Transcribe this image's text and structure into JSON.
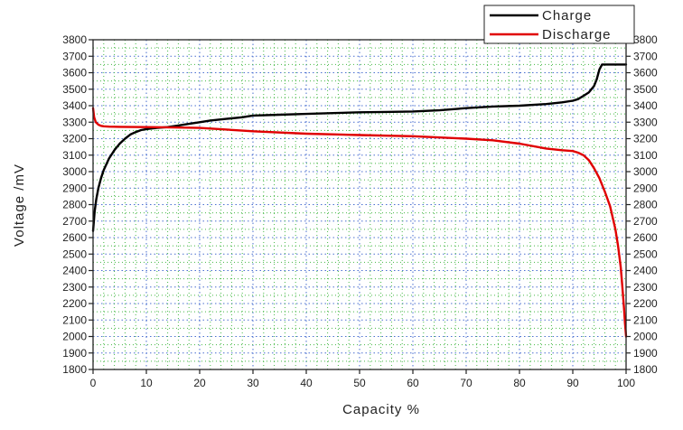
{
  "chart_data": {
    "type": "line",
    "title": "",
    "xlabel": "Capacity  %",
    "ylabel": "Voltage /mV",
    "xlim": [
      0,
      100
    ],
    "ylim": [
      1800,
      3800
    ],
    "x_ticks": [
      0,
      10,
      20,
      30,
      40,
      50,
      60,
      70,
      80,
      90,
      100
    ],
    "y_ticks": [
      1800,
      1900,
      2000,
      2100,
      2200,
      2300,
      2400,
      2500,
      2600,
      2700,
      2800,
      2900,
      3000,
      3100,
      3200,
      3300,
      3400,
      3500,
      3600,
      3700,
      3800
    ],
    "right_axis_mirrored": true,
    "grid": true,
    "legend_position": "top-right",
    "series": [
      {
        "name": "Charge",
        "color": "#000000",
        "x": [
          0,
          0.3,
          0.6,
          1,
          1.5,
          2,
          3,
          4,
          5,
          6,
          7,
          8,
          9,
          10,
          11,
          12,
          14,
          16,
          18,
          20,
          22,
          25,
          28,
          30,
          35,
          40,
          45,
          50,
          55,
          60,
          65,
          70,
          75,
          80,
          85,
          88,
          90,
          91,
          92,
          93,
          94,
          94.5,
          95,
          95.5,
          96,
          97,
          98,
          99,
          100
        ],
        "y": [
          2640,
          2760,
          2830,
          2900,
          2960,
          3010,
          3080,
          3130,
          3170,
          3200,
          3225,
          3240,
          3252,
          3258,
          3262,
          3265,
          3270,
          3280,
          3290,
          3300,
          3310,
          3320,
          3330,
          3340,
          3345,
          3350,
          3355,
          3360,
          3362,
          3365,
          3372,
          3385,
          3395,
          3400,
          3410,
          3420,
          3430,
          3440,
          3460,
          3480,
          3520,
          3560,
          3620,
          3650,
          3650,
          3650,
          3650,
          3650,
          3650
        ]
      },
      {
        "name": "Discharge",
        "color": "#e00000",
        "x": [
          0,
          0.2,
          0.5,
          1,
          1.5,
          2,
          3,
          5,
          10,
          15,
          20,
          30,
          40,
          50,
          60,
          70,
          75,
          80,
          85,
          88,
          90,
          91,
          92,
          93,
          94,
          95,
          96,
          97,
          98,
          98.5,
          99,
          99.3,
          99.6,
          99.8,
          100
        ],
        "y": [
          3385,
          3330,
          3300,
          3285,
          3278,
          3275,
          3273,
          3272,
          3270,
          3268,
          3265,
          3245,
          3230,
          3222,
          3215,
          3200,
          3190,
          3170,
          3140,
          3130,
          3125,
          3115,
          3100,
          3070,
          3020,
          2960,
          2880,
          2790,
          2650,
          2550,
          2420,
          2300,
          2180,
          2080,
          2000
        ]
      }
    ]
  }
}
